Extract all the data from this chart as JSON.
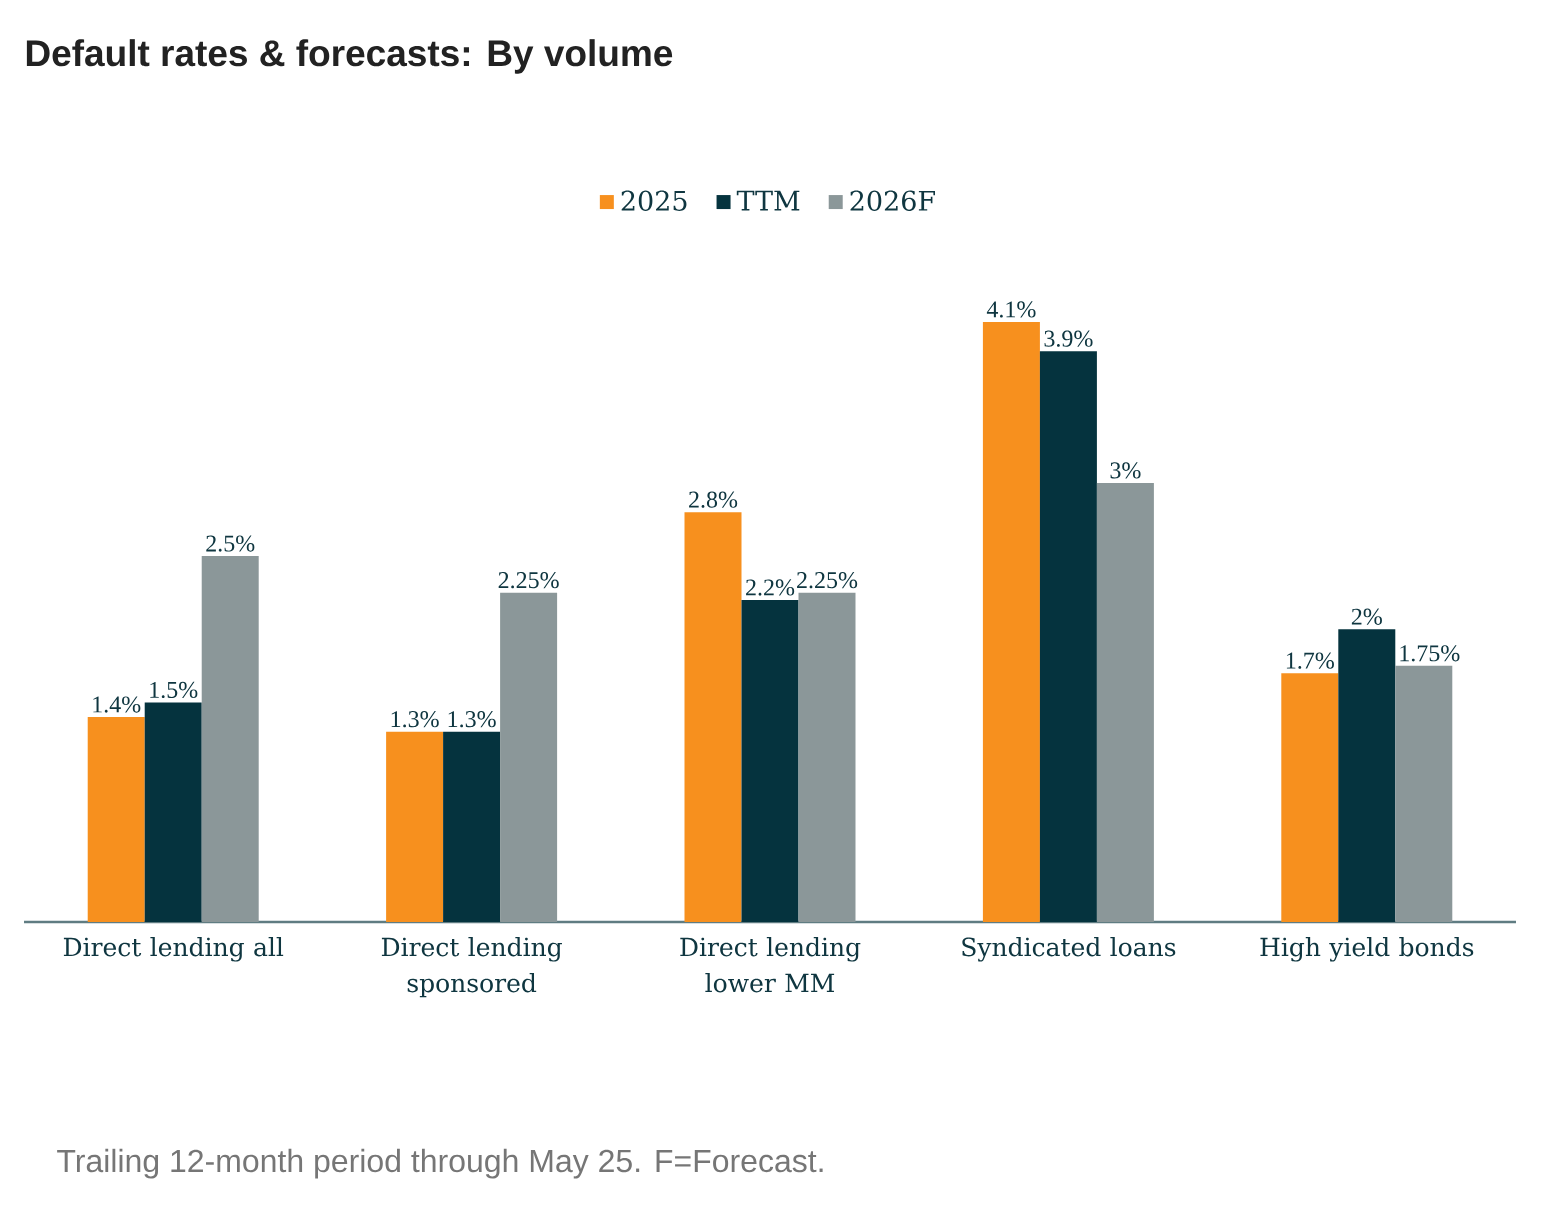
{
  "chart_data": {
    "type": "bar",
    "title": "Default rates & forecasts: By volume",
    "categories": [
      "Direct lending all",
      "Direct lending sponsored",
      "Direct lending lower MM",
      "Syndicated loans",
      "High yield bonds"
    ],
    "series": [
      {
        "name": "2025",
        "color": "#f7901e",
        "values": [
          1.4,
          1.3,
          2.8,
          4.1,
          1.7
        ],
        "value_labels": [
          "1.4%",
          "1.3%",
          "2.8%",
          "4.1%",
          "1.7%"
        ]
      },
      {
        "name": "TTM",
        "color": "#05333e",
        "values": [
          1.5,
          1.3,
          2.2,
          3.9,
          2.0
        ],
        "value_labels": [
          "1.5%",
          "1.3%",
          "2.2%",
          "3.9%",
          "2%"
        ]
      },
      {
        "name": "2026F",
        "color": "#8b9799",
        "values": [
          2.5,
          2.25,
          2.25,
          3.0,
          1.75
        ],
        "value_labels": [
          "2.5%",
          "2.25%",
          "2.25%",
          "3%",
          "1.75%"
        ]
      }
    ],
    "legend": "top",
    "annotations": [
      "Trailing 12-month period through May 25. F=Forecast."
    ]
  }
}
